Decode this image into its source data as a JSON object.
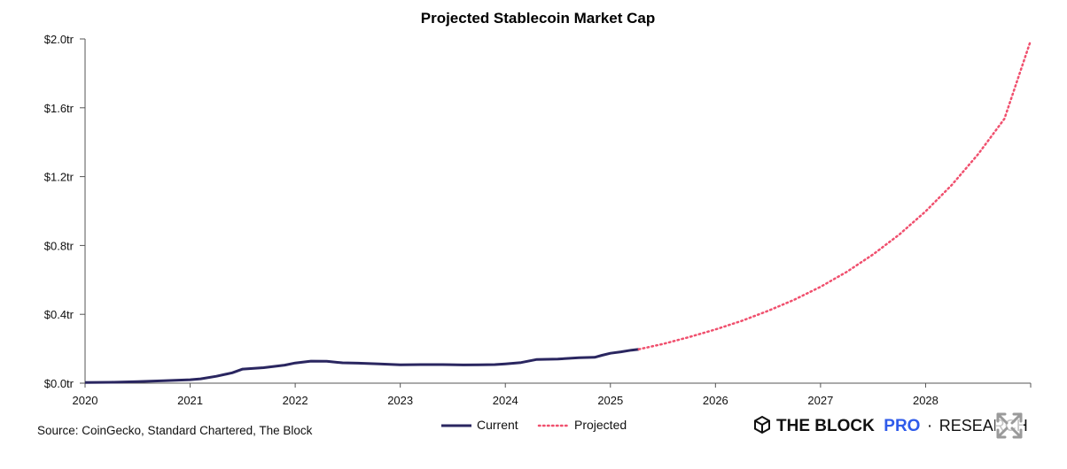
{
  "chart_data": {
    "type": "line",
    "title": "Projected Stablecoin Market Cap",
    "xlabel": "",
    "ylabel": "",
    "xlim": [
      2020,
      2029.0
    ],
    "ylim": [
      0,
      2000
    ],
    "y_unit": "billion USD",
    "y_ticks": [
      {
        "value": 0,
        "label": "$0.0tr"
      },
      {
        "value": 400,
        "label": "$0.4tr"
      },
      {
        "value": 800,
        "label": "$0.8tr"
      },
      {
        "value": 1200,
        "label": "$1.2tr"
      },
      {
        "value": 1600,
        "label": "$1.6tr"
      },
      {
        "value": 2000,
        "label": "$2.0tr"
      }
    ],
    "x_ticks": [
      {
        "value": 2020,
        "label": "2020"
      },
      {
        "value": 2021,
        "label": "2021"
      },
      {
        "value": 2022,
        "label": "2022"
      },
      {
        "value": 2023,
        "label": "2023"
      },
      {
        "value": 2024,
        "label": "2024"
      },
      {
        "value": 2025,
        "label": "2025"
      },
      {
        "value": 2026,
        "label": "2026"
      },
      {
        "value": 2027,
        "label": "2027"
      },
      {
        "value": 2028,
        "label": "2028"
      }
    ],
    "series": [
      {
        "name": "Current",
        "style": "solid",
        "color": "#2a2660",
        "x": [
          2020.0,
          2020.25,
          2020.5,
          2020.75,
          2021.0,
          2021.1,
          2021.25,
          2021.4,
          2021.5,
          2021.7,
          2021.9,
          2022.0,
          2022.15,
          2022.3,
          2022.45,
          2022.6,
          2022.8,
          2023.0,
          2023.2,
          2023.4,
          2023.6,
          2023.75,
          2023.9,
          2024.0,
          2024.15,
          2024.3,
          2024.5,
          2024.7,
          2024.85,
          2024.92,
          2025.0,
          2025.1,
          2025.2,
          2025.27
        ],
        "y": [
          4,
          5,
          9,
          14,
          20,
          25,
          40,
          60,
          82,
          90,
          105,
          117,
          128,
          127,
          118,
          116,
          112,
          107,
          108,
          108,
          106,
          107,
          108,
          112,
          120,
          138,
          140,
          148,
          150,
          162,
          174,
          182,
          192,
          197
        ]
      },
      {
        "name": "Projected",
        "style": "dotted",
        "color": "#f0506e",
        "x": [
          2025.27,
          2025.5,
          2025.75,
          2026.0,
          2026.25,
          2026.5,
          2026.75,
          2027.0,
          2027.25,
          2027.5,
          2027.75,
          2028.0,
          2028.25,
          2028.5,
          2028.75,
          2029.0
        ],
        "y": [
          197,
          228,
          268,
          312,
          362,
          420,
          485,
          560,
          647,
          748,
          864,
          998,
          1152,
          1330,
          1536,
          1990
        ]
      }
    ],
    "legend": [
      "Current",
      "Projected"
    ],
    "legend_position": "bottom"
  },
  "footer": {
    "source": "Source: CoinGecko, Standard Chartered, The Block",
    "brand_main": "THE BLOCK",
    "brand_pro": "PRO",
    "brand_sep": "·",
    "brand_research": "RESEARCH"
  },
  "colors": {
    "current": "#2a2660",
    "projected": "#f0506e",
    "brand_blue": "#2f5bea",
    "axis": "#555555"
  }
}
